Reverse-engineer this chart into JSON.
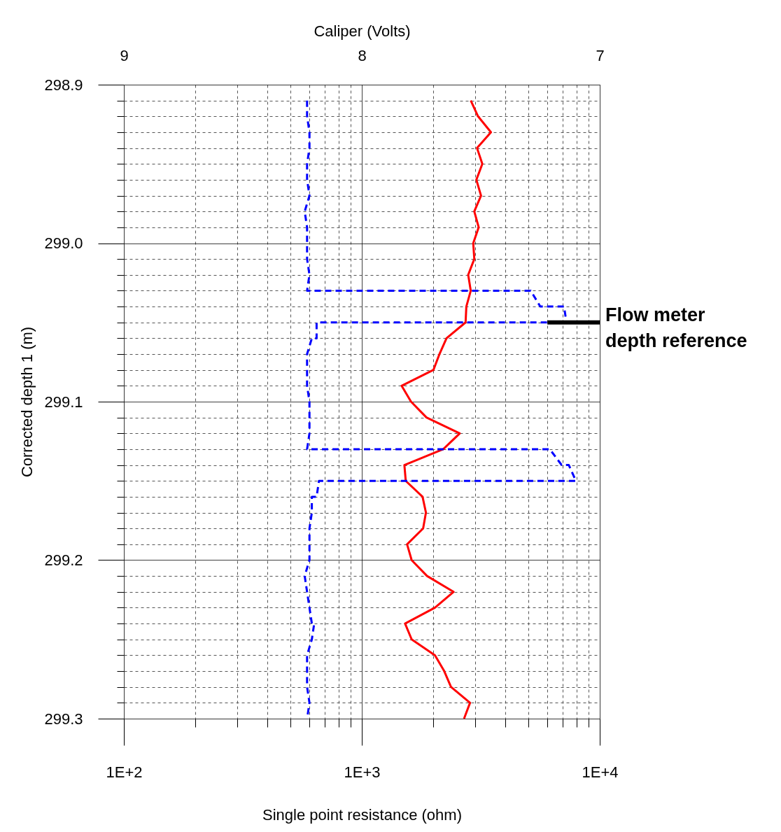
{
  "chart_data": {
    "type": "line",
    "orientation": "horizontal",
    "xlabel": "Single point resistance (ohm)",
    "ylabel": "Corrected depth 1 (m)",
    "x2label": "Caliper (Volts)",
    "log": "x",
    "xlim": [
      100,
      10000
    ],
    "xticks": [
      {
        "value": 100,
        "label": "1E+2"
      },
      {
        "value": 200,
        "label": null
      },
      {
        "value": 300,
        "label": null
      },
      {
        "value": 400,
        "label": null
      },
      {
        "value": 500,
        "label": null
      },
      {
        "value": 600,
        "label": null
      },
      {
        "value": 700,
        "label": null
      },
      {
        "value": 800,
        "label": null
      },
      {
        "value": 900,
        "label": null
      },
      {
        "value": 1000,
        "label": "1E+3"
      },
      {
        "value": 2000,
        "label": null
      },
      {
        "value": 3000,
        "label": null
      },
      {
        "value": 4000,
        "label": null
      },
      {
        "value": 5000,
        "label": null
      },
      {
        "value": 6000,
        "label": null
      },
      {
        "value": 7000,
        "label": null
      },
      {
        "value": 8000,
        "label": null
      },
      {
        "value": 9000,
        "label": null
      },
      {
        "value": 10000,
        "label": "1E+4"
      }
    ],
    "x2lim": [
      9,
      7
    ],
    "x2ticks": [
      9,
      8,
      7
    ],
    "ylim": [
      299.3,
      298.9
    ],
    "yticks": [
      {
        "value": 298.9,
        "label": "298.9"
      },
      {
        "value": 298.91,
        "label": null
      },
      {
        "value": 298.92,
        "label": null
      },
      {
        "value": 298.93,
        "label": null
      },
      {
        "value": 298.94,
        "label": null
      },
      {
        "value": 298.95,
        "label": null
      },
      {
        "value": 298.96,
        "label": null
      },
      {
        "value": 298.97,
        "label": null
      },
      {
        "value": 298.98,
        "label": null
      },
      {
        "value": 298.99,
        "label": null
      },
      {
        "value": 299.0,
        "label": "299.0"
      },
      {
        "value": 299.01,
        "label": null
      },
      {
        "value": 299.02,
        "label": null
      },
      {
        "value": 299.03,
        "label": null
      },
      {
        "value": 299.04,
        "label": null
      },
      {
        "value": 299.05,
        "label": null
      },
      {
        "value": 299.06,
        "label": null
      },
      {
        "value": 299.07,
        "label": null
      },
      {
        "value": 299.08,
        "label": null
      },
      {
        "value": 299.09,
        "label": null
      },
      {
        "value": 299.1,
        "label": "299.1"
      },
      {
        "value": 299.11,
        "label": null
      },
      {
        "value": 299.12,
        "label": null
      },
      {
        "value": 299.13,
        "label": null
      },
      {
        "value": 299.14,
        "label": null
      },
      {
        "value": 299.15,
        "label": null
      },
      {
        "value": 299.16,
        "label": null
      },
      {
        "value": 299.17,
        "label": null
      },
      {
        "value": 299.18,
        "label": null
      },
      {
        "value": 299.19,
        "label": null
      },
      {
        "value": 299.2,
        "label": "299.2"
      },
      {
        "value": 299.21,
        "label": null
      },
      {
        "value": 299.22,
        "label": null
      },
      {
        "value": 299.23,
        "label": null
      },
      {
        "value": 299.24,
        "label": null
      },
      {
        "value": 299.25,
        "label": null
      },
      {
        "value": 299.26,
        "label": null
      },
      {
        "value": 299.27,
        "label": null
      },
      {
        "value": 299.28,
        "label": null
      },
      {
        "value": 299.29,
        "label": null
      },
      {
        "value": 299.3,
        "label": "299.3"
      }
    ],
    "grid": true,
    "marker": "none",
    "series": [
      {
        "color": "#ff0000",
        "line_style": "solid",
        "x": [
          298.91,
          298.92,
          298.93,
          298.94,
          298.95,
          298.96,
          298.97,
          298.98,
          298.99,
          299.0,
          299.01,
          299.02,
          299.03,
          299.04,
          299.05,
          299.06,
          299.07,
          299.08,
          299.09,
          299.1,
          299.11,
          299.12,
          299.13,
          299.14,
          299.15,
          299.16,
          299.17,
          299.18,
          299.19,
          299.2,
          299.21,
          299.22,
          299.23,
          299.24,
          299.25,
          299.26,
          299.27,
          299.28,
          299.29,
          299.3
        ],
        "values": [
          2870,
          3080,
          3490,
          3050,
          3210,
          3030,
          3170,
          2970,
          3100,
          2940,
          2970,
          2800,
          2870,
          2750,
          2730,
          2270,
          2120,
          2000,
          1470,
          1610,
          1870,
          2580,
          2200,
          1510,
          1530,
          1800,
          1860,
          1810,
          1550,
          1620,
          1880,
          2430,
          2030,
          1520,
          1620,
          2030,
          2220,
          2370,
          2850,
          2690
        ]
      },
      {
        "color": "#0000ff",
        "line_style": "dashed",
        "axis": "x2",
        "x": [
          298.91,
          298.92,
          298.93,
          298.94,
          298.95,
          298.96,
          298.97,
          298.98,
          298.99,
          299.0,
          299.01,
          299.02,
          299.03,
          299.03,
          299.04,
          299.04,
          299.05,
          299.05,
          299.06,
          299.06,
          299.07,
          299.08,
          299.09,
          299.1,
          299.11,
          299.12,
          299.13,
          299.13,
          299.14,
          299.14,
          299.15,
          299.15,
          299.16,
          299.16,
          299.17,
          299.18,
          299.19,
          299.2,
          299.21,
          299.22,
          299.23,
          299.24,
          299.24,
          299.25,
          299.26,
          299.27,
          299.28,
          299.29,
          299.3
        ],
        "values": [
          8.23,
          8.23,
          8.22,
          8.22,
          8.23,
          8.23,
          8.22,
          8.24,
          8.23,
          8.23,
          8.23,
          8.22,
          8.23,
          7.29,
          7.25,
          7.15,
          7.14,
          8.19,
          8.19,
          8.21,
          8.23,
          8.23,
          8.23,
          8.22,
          8.22,
          8.22,
          8.23,
          7.21,
          7.16,
          7.13,
          7.1,
          8.18,
          8.19,
          8.21,
          8.21,
          8.22,
          8.22,
          8.22,
          8.24,
          8.23,
          8.22,
          8.21,
          8.2,
          8.21,
          8.23,
          8.23,
          8.23,
          8.22,
          8.23
        ]
      }
    ],
    "ref_lines": [
      {
        "axis": "y",
        "value": 299.05,
        "label": "Flow meter depth reference",
        "color": "#000000"
      }
    ]
  }
}
